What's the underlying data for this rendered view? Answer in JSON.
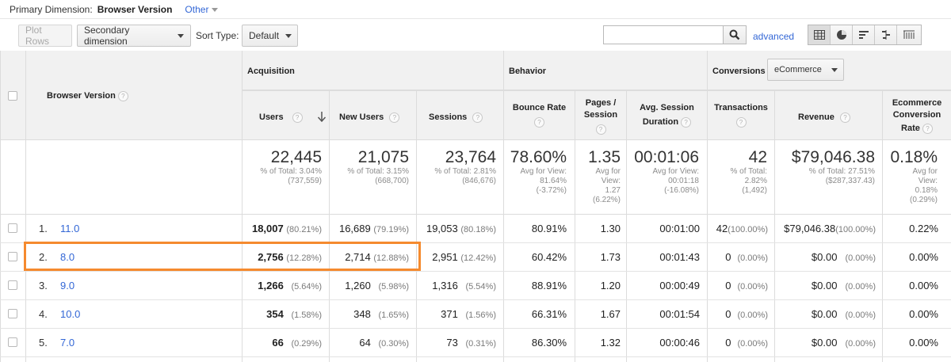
{
  "primary": {
    "label": "Primary Dimension:",
    "value": "Browser Version",
    "other": "Other"
  },
  "toolbar": {
    "plot_rows": "Plot Rows",
    "secondary_dimension": "Secondary dimension",
    "sort_type_label": "Sort Type:",
    "sort_type_value": "Default",
    "search_value": "",
    "advanced": "advanced"
  },
  "header": {
    "dimension": "Browser Version",
    "acquisition": "Acquisition",
    "behavior": "Behavior",
    "conversions": "Conversions",
    "conversions_select": "eCommerce",
    "columns": {
      "users": "Users",
      "new_users": "New Users",
      "sessions": "Sessions",
      "bounce_rate": "Bounce Rate",
      "pages_session_1": "Pages /",
      "pages_session_2": "Session",
      "avg_session_1": "Avg. Session",
      "avg_session_2": "Duration",
      "transactions": "Transactions",
      "revenue": "Revenue",
      "ecr_1": "Ecommerce",
      "ecr_2": "Conversion",
      "ecr_3": "Rate"
    }
  },
  "summary": {
    "users": {
      "big": "22,445",
      "l1": "% of Total: 3.04%",
      "l2": "(737,559)"
    },
    "new_users": {
      "big": "21,075",
      "l1": "% of Total: 3.15%",
      "l2": "(668,700)"
    },
    "sessions": {
      "big": "23,764",
      "l1": "% of Total: 2.81%",
      "l2": "(846,676)"
    },
    "bounce_rate": {
      "big": "78.60%",
      "l1": "Avg for View:",
      "l2": "81.64%",
      "l3": "(-3.72%)"
    },
    "pages_session": {
      "big": "1.35",
      "l1": "Avg for",
      "l2": "View:",
      "l3": "1.27",
      "l4": "(6.22%)"
    },
    "avg_session": {
      "big": "00:01:06",
      "l1": "Avg for View:",
      "l2": "00:01:18",
      "l3": "(-16.08%)"
    },
    "transactions": {
      "big": "42",
      "l1": "% of Total:",
      "l2": "2.82%",
      "l3": "(1,492)"
    },
    "revenue": {
      "big": "$79,046.38",
      "l1": "% of Total: 27.51%",
      "l2": "($287,337.43)"
    },
    "ecr": {
      "big": "0.18%",
      "l1": "Avg for",
      "l2": "View:",
      "l3": "0.18%",
      "l4": "(0.29%)"
    }
  },
  "rows": [
    {
      "idx": "1.",
      "version": "11.0",
      "users": "18,007",
      "users_pct": "(80.21%)",
      "new_users": "16,689",
      "new_users_pct": "(79.19%)",
      "sessions": "19,053",
      "sessions_pct": "(80.18%)",
      "bounce": "80.91%",
      "pages": "1.30",
      "duration": "00:01:00",
      "transactions": "42",
      "transactions_pct": "(100.00%)",
      "revenue": "$79,046.38",
      "revenue_pct": "(100.00%)",
      "ecr": "0.22%"
    },
    {
      "idx": "2.",
      "version": "8.0",
      "users": "2,756",
      "users_pct": "(12.28%)",
      "new_users": "2,714",
      "new_users_pct": "(12.88%)",
      "sessions": "2,951",
      "sessions_pct": "(12.42%)",
      "bounce": "60.42%",
      "pages": "1.73",
      "duration": "00:01:43",
      "transactions": "0",
      "transactions_pct": "(0.00%)",
      "revenue": "$0.00",
      "revenue_pct": "(0.00%)",
      "ecr": "0.00%"
    },
    {
      "idx": "3.",
      "version": "9.0",
      "users": "1,266",
      "users_pct": "(5.64%)",
      "new_users": "1,260",
      "new_users_pct": "(5.98%)",
      "sessions": "1,316",
      "sessions_pct": "(5.54%)",
      "bounce": "88.91%",
      "pages": "1.20",
      "duration": "00:00:49",
      "transactions": "0",
      "transactions_pct": "(0.00%)",
      "revenue": "$0.00",
      "revenue_pct": "(0.00%)",
      "ecr": "0.00%"
    },
    {
      "idx": "4.",
      "version": "10.0",
      "users": "354",
      "users_pct": "(1.58%)",
      "new_users": "348",
      "new_users_pct": "(1.65%)",
      "sessions": "371",
      "sessions_pct": "(1.56%)",
      "bounce": "66.31%",
      "pages": "1.67",
      "duration": "00:01:54",
      "transactions": "0",
      "transactions_pct": "(0.00%)",
      "revenue": "$0.00",
      "revenue_pct": "(0.00%)",
      "ecr": "0.00%"
    },
    {
      "idx": "5.",
      "version": "7.0",
      "users": "66",
      "users_pct": "(0.29%)",
      "new_users": "64",
      "new_users_pct": "(0.30%)",
      "sessions": "73",
      "sessions_pct": "(0.31%)",
      "bounce": "86.30%",
      "pages": "1.32",
      "duration": "00:00:46",
      "transactions": "0",
      "transactions_pct": "(0.00%)",
      "revenue": "$0.00",
      "revenue_pct": "(0.00%)",
      "ecr": "0.00%"
    }
  ],
  "colors": {
    "link": "#3367d6",
    "highlight": "#f58a2e",
    "header_bg": "#f1f1f1"
  }
}
